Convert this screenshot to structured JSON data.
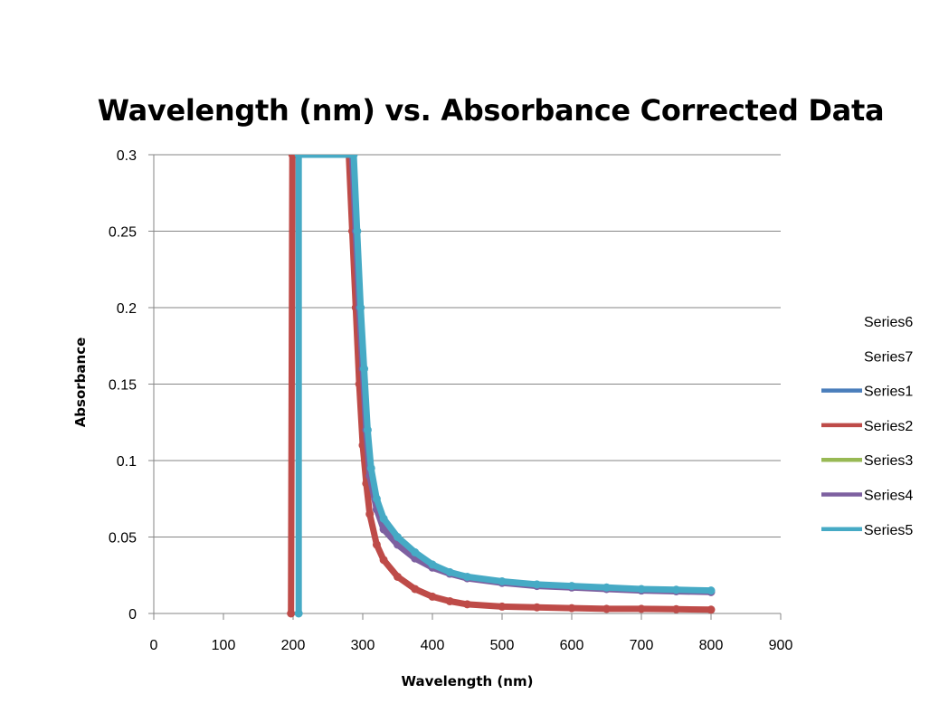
{
  "chart_data": {
    "type": "scatter",
    "title": "Wavelength (nm) vs. Absorbance Corrected Data",
    "xlabel": "Wavelength (nm)",
    "ylabel": "Absorbance",
    "xlim": [
      0,
      900
    ],
    "ylim": [
      0,
      0.3
    ],
    "xticks": [
      0,
      100,
      200,
      300,
      400,
      500,
      600,
      700,
      800,
      900
    ],
    "yticks": [
      0,
      0.05,
      0.1,
      0.15,
      0.2,
      0.25,
      0.3
    ],
    "ytick_labels": [
      "0",
      "0.05",
      "0.1",
      "0.15",
      "0.2",
      "0.25",
      "0.3"
    ],
    "grid": "horizontal",
    "legend_position": "right",
    "series": [
      {
        "name": "Series6",
        "color": "none",
        "points": []
      },
      {
        "name": "Series7",
        "color": "none",
        "points": []
      },
      {
        "name": "Series1",
        "color": "#4a7ebb",
        "points": []
      },
      {
        "name": "Series2",
        "color": "#be4b48",
        "points": [
          [
            197,
            0
          ],
          [
            199,
            0.3
          ],
          [
            280,
            0.3
          ],
          [
            285,
            0.25
          ],
          [
            290,
            0.2
          ],
          [
            295,
            0.15
          ],
          [
            300,
            0.11
          ],
          [
            305,
            0.085
          ],
          [
            310,
            0.065
          ],
          [
            320,
            0.045
          ],
          [
            330,
            0.035
          ],
          [
            350,
            0.024
          ],
          [
            375,
            0.016
          ],
          [
            400,
            0.011
          ],
          [
            425,
            0.008
          ],
          [
            450,
            0.006
          ],
          [
            500,
            0.0045
          ],
          [
            550,
            0.004
          ],
          [
            600,
            0.0035
          ],
          [
            650,
            0.003
          ],
          [
            700,
            0.003
          ],
          [
            750,
            0.0028
          ],
          [
            800,
            0.0025
          ]
        ]
      },
      {
        "name": "Series3",
        "color": "#98b954",
        "points": []
      },
      {
        "name": "Series4",
        "color": "#7d60a0",
        "points": [
          [
            285,
            0.3
          ],
          [
            290,
            0.25
          ],
          [
            295,
            0.2
          ],
          [
            300,
            0.16
          ],
          [
            305,
            0.12
          ],
          [
            310,
            0.09
          ],
          [
            320,
            0.068
          ],
          [
            330,
            0.055
          ],
          [
            350,
            0.045
          ],
          [
            375,
            0.036
          ],
          [
            400,
            0.03
          ],
          [
            425,
            0.026
          ],
          [
            450,
            0.023
          ],
          [
            500,
            0.02
          ],
          [
            550,
            0.018
          ],
          [
            600,
            0.017
          ],
          [
            650,
            0.016
          ],
          [
            700,
            0.015
          ],
          [
            750,
            0.0145
          ],
          [
            800,
            0.014
          ]
        ]
      },
      {
        "name": "Series5",
        "color": "#46aac5",
        "points": [
          [
            208,
            0
          ],
          [
            208,
            0.3
          ],
          [
            287,
            0.3
          ],
          [
            292,
            0.25
          ],
          [
            297,
            0.2
          ],
          [
            302,
            0.16
          ],
          [
            307,
            0.12
          ],
          [
            312,
            0.095
          ],
          [
            320,
            0.075
          ],
          [
            330,
            0.062
          ],
          [
            350,
            0.05
          ],
          [
            375,
            0.04
          ],
          [
            400,
            0.032
          ],
          [
            425,
            0.027
          ],
          [
            450,
            0.024
          ],
          [
            500,
            0.021
          ],
          [
            550,
            0.019
          ],
          [
            600,
            0.018
          ],
          [
            650,
            0.017
          ],
          [
            700,
            0.016
          ],
          [
            750,
            0.0155
          ],
          [
            800,
            0.015
          ]
        ]
      }
    ]
  }
}
